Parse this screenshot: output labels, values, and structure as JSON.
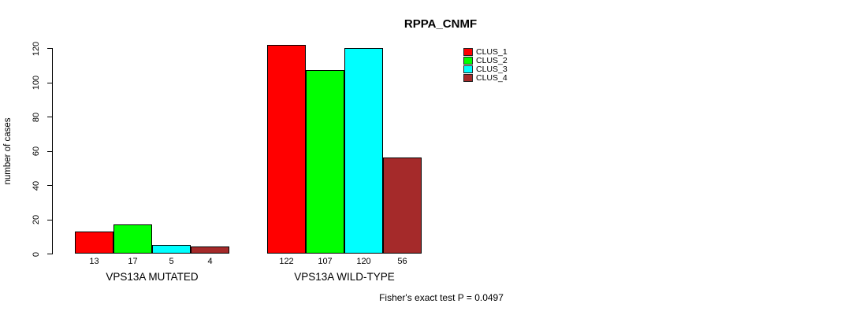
{
  "title": "RPPA_CNMF",
  "y_axis_label": "number of cases",
  "footer": "Fisher's exact test P = 0.0497",
  "colors": {
    "clus_1": "#FF0000",
    "clus_2": "#00FF00",
    "clus_3": "#00FFFF",
    "clus_4": "#A52A2A",
    "axis": "#000000",
    "background": "#FFFFFF"
  },
  "chart_data": {
    "type": "bar",
    "title": "RPPA_CNMF",
    "xlabel": "",
    "ylabel": "number of cases",
    "ylim": [
      0,
      120
    ],
    "yticks": [
      0,
      20,
      40,
      60,
      80,
      100,
      120
    ],
    "grid": false,
    "legend_position": "top-right",
    "categories": [
      "VPS13A MUTATED",
      "VPS13A WILD-TYPE"
    ],
    "series": [
      {
        "name": "CLUS_1",
        "color": "#FF0000",
        "values": [
          13,
          122
        ]
      },
      {
        "name": "CLUS_2",
        "color": "#00FF00",
        "values": [
          17,
          107
        ]
      },
      {
        "name": "CLUS_3",
        "color": "#00FFFF",
        "values": [
          5,
          120
        ]
      },
      {
        "name": "CLUS_4",
        "color": "#A52A2A",
        "values": [
          4,
          56
        ]
      }
    ],
    "bar_value_labels": [
      [
        "13",
        "17",
        "5",
        "4"
      ],
      [
        "122",
        "107",
        "120",
        "56"
      ]
    ],
    "annotation": "Fisher's exact test P = 0.0497"
  }
}
